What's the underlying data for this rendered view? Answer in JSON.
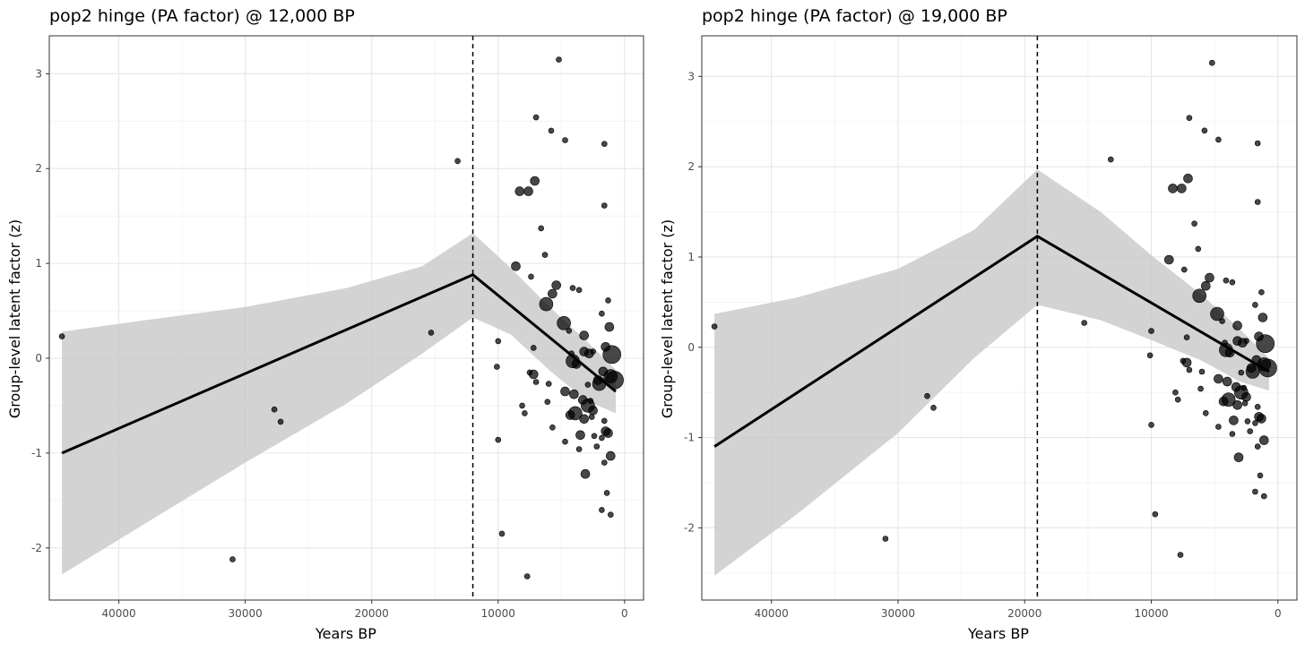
{
  "chart_data": [
    {
      "type": "scatter",
      "title": "pop2 hinge (PA factor) @ 12,000 BP",
      "xlabel": "Years BP",
      "ylabel": "Group-level latent factor (z)",
      "xlim": [
        45500,
        -1500
      ],
      "ylim": [
        -2.55,
        3.4
      ],
      "x_reversed": true,
      "x_ticks": [
        40000,
        30000,
        20000,
        10000,
        0
      ],
      "y_ticks": [
        -2,
        -1,
        0,
        1,
        2,
        3
      ],
      "grid": true,
      "hinge_x": 12000,
      "fit_line": [
        {
          "x": 44500,
          "y": -1.0
        },
        {
          "x": 12000,
          "y": 0.88
        },
        {
          "x": 700,
          "y": -0.35
        }
      ],
      "ribbon": {
        "x": [
          44500,
          38000,
          30000,
          22000,
          16000,
          12000,
          9000,
          6000,
          3000,
          700
        ],
        "upper": [
          0.28,
          0.4,
          0.54,
          0.74,
          0.97,
          1.32,
          0.95,
          0.55,
          0.18,
          -0.12
        ],
        "lower": [
          -2.28,
          -1.75,
          -1.1,
          -0.48,
          0.05,
          0.43,
          0.25,
          -0.12,
          -0.45,
          -0.58
        ]
      },
      "points": [
        {
          "x": 44500,
          "y": 0.23,
          "s": 1
        },
        {
          "x": 31000,
          "y": -2.12,
          "s": 1
        },
        {
          "x": 27700,
          "y": -0.54,
          "s": 1
        },
        {
          "x": 27200,
          "y": -0.67,
          "s": 1
        },
        {
          "x": 15300,
          "y": 0.27,
          "s": 1
        },
        {
          "x": 13200,
          "y": 2.08,
          "s": 1
        },
        {
          "x": 10000,
          "y": 0.18,
          "s": 1
        },
        {
          "x": 10100,
          "y": -0.09,
          "s": 1
        },
        {
          "x": 10000,
          "y": -0.86,
          "s": 1
        },
        {
          "x": 9700,
          "y": -1.85,
          "s": 1
        },
        {
          "x": 8300,
          "y": 1.76,
          "s": 2
        },
        {
          "x": 7600,
          "y": 1.76,
          "s": 2
        },
        {
          "x": 7100,
          "y": 1.87,
          "s": 2
        },
        {
          "x": 7000,
          "y": 2.54,
          "s": 1
        },
        {
          "x": 7700,
          "y": -2.3,
          "s": 1
        },
        {
          "x": 5800,
          "y": 2.4,
          "s": 1
        },
        {
          "x": 5200,
          "y": 3.15,
          "s": 1
        },
        {
          "x": 4700,
          "y": 2.3,
          "s": 1
        },
        {
          "x": 1600,
          "y": 2.26,
          "s": 1
        },
        {
          "x": 1600,
          "y": 1.61,
          "s": 1
        },
        {
          "x": 6600,
          "y": 1.37,
          "s": 1
        },
        {
          "x": 6300,
          "y": 1.09,
          "s": 1
        },
        {
          "x": 8600,
          "y": 0.97,
          "s": 2
        },
        {
          "x": 7400,
          "y": 0.86,
          "s": 1
        },
        {
          "x": 5400,
          "y": 0.77,
          "s": 2
        },
        {
          "x": 5700,
          "y": 0.68,
          "s": 2
        },
        {
          "x": 6200,
          "y": 0.57,
          "s": 3
        },
        {
          "x": 4100,
          "y": 0.74,
          "s": 1
        },
        {
          "x": 3600,
          "y": 0.72,
          "s": 1
        },
        {
          "x": 1300,
          "y": 0.61,
          "s": 1
        },
        {
          "x": 1800,
          "y": 0.47,
          "s": 1
        },
        {
          "x": 4800,
          "y": 0.37,
          "s": 3
        },
        {
          "x": 4400,
          "y": 0.29,
          "s": 1
        },
        {
          "x": 3200,
          "y": 0.24,
          "s": 2
        },
        {
          "x": 1200,
          "y": 0.33,
          "s": 2
        },
        {
          "x": 7200,
          "y": 0.11,
          "s": 1
        },
        {
          "x": 4200,
          "y": 0.05,
          "s": 1
        },
        {
          "x": 3800,
          "y": -0.06,
          "s": 2
        },
        {
          "x": 3200,
          "y": 0.07,
          "s": 2
        },
        {
          "x": 2800,
          "y": 0.05,
          "s": 2
        },
        {
          "x": 2500,
          "y": 0.07,
          "s": 1
        },
        {
          "x": 1500,
          "y": 0.12,
          "s": 2
        },
        {
          "x": 1000,
          "y": 0.04,
          "s": 4
        },
        {
          "x": 4100,
          "y": -0.03,
          "s": 3
        },
        {
          "x": 7500,
          "y": -0.15,
          "s": 1
        },
        {
          "x": 7200,
          "y": -0.17,
          "s": 2
        },
        {
          "x": 7000,
          "y": -0.25,
          "s": 1
        },
        {
          "x": 6000,
          "y": -0.27,
          "s": 1
        },
        {
          "x": 2100,
          "y": -0.23,
          "s": 2
        },
        {
          "x": 1700,
          "y": -0.14,
          "s": 2
        },
        {
          "x": 1100,
          "y": -0.19,
          "s": 3
        },
        {
          "x": 800,
          "y": -0.23,
          "s": 4
        },
        {
          "x": 2000,
          "y": -0.27,
          "s": 3
        },
        {
          "x": 2900,
          "y": -0.28,
          "s": 1
        },
        {
          "x": 4700,
          "y": -0.35,
          "s": 2
        },
        {
          "x": 4000,
          "y": -0.38,
          "s": 2
        },
        {
          "x": 3300,
          "y": -0.44,
          "s": 2
        },
        {
          "x": 2700,
          "y": -0.45,
          "s": 1
        },
        {
          "x": 8100,
          "y": -0.5,
          "s": 1
        },
        {
          "x": 6100,
          "y": -0.46,
          "s": 1
        },
        {
          "x": 2900,
          "y": -0.5,
          "s": 3
        },
        {
          "x": 2500,
          "y": -0.55,
          "s": 2
        },
        {
          "x": 3900,
          "y": -0.58,
          "s": 3
        },
        {
          "x": 4300,
          "y": -0.6,
          "s": 2
        },
        {
          "x": 3200,
          "y": -0.64,
          "s": 2
        },
        {
          "x": 2600,
          "y": -0.62,
          "s": 1
        },
        {
          "x": 7900,
          "y": -0.58,
          "s": 1
        },
        {
          "x": 1600,
          "y": -0.66,
          "s": 1
        },
        {
          "x": 5700,
          "y": -0.73,
          "s": 1
        },
        {
          "x": 1500,
          "y": -0.77,
          "s": 2
        },
        {
          "x": 1300,
          "y": -0.79,
          "s": 2
        },
        {
          "x": 3500,
          "y": -0.81,
          "s": 2
        },
        {
          "x": 2400,
          "y": -0.82,
          "s": 1
        },
        {
          "x": 1800,
          "y": -0.84,
          "s": 1
        },
        {
          "x": 4700,
          "y": -0.88,
          "s": 1
        },
        {
          "x": 2200,
          "y": -0.93,
          "s": 1
        },
        {
          "x": 3600,
          "y": -0.96,
          "s": 1
        },
        {
          "x": 1100,
          "y": -1.03,
          "s": 2
        },
        {
          "x": 1600,
          "y": -1.1,
          "s": 1
        },
        {
          "x": 3100,
          "y": -1.22,
          "s": 2
        },
        {
          "x": 1400,
          "y": -1.42,
          "s": 1
        },
        {
          "x": 1800,
          "y": -1.6,
          "s": 1
        },
        {
          "x": 1100,
          "y": -1.65,
          "s": 1
        }
      ]
    },
    {
      "type": "scatter",
      "title": "pop2 hinge (PA factor) @ 19,000 BP",
      "xlabel": "Years BP",
      "ylabel": "Group-level latent factor (z)",
      "xlim": [
        45500,
        -1500
      ],
      "ylim": [
        -2.8,
        3.45
      ],
      "x_reversed": true,
      "x_ticks": [
        40000,
        30000,
        20000,
        10000,
        0
      ],
      "y_ticks": [
        -2,
        -1,
        0,
        1,
        2,
        3
      ],
      "grid": true,
      "hinge_x": 19000,
      "fit_line": [
        {
          "x": 44500,
          "y": -1.1
        },
        {
          "x": 19000,
          "y": 1.23
        },
        {
          "x": 700,
          "y": -0.27
        }
      ],
      "ribbon": {
        "x": [
          44500,
          38000,
          30000,
          24000,
          19000,
          14000,
          10000,
          6000,
          3000,
          700
        ],
        "upper": [
          0.37,
          0.55,
          0.87,
          1.3,
          1.97,
          1.5,
          1.02,
          0.58,
          0.2,
          -0.12
        ],
        "lower": [
          -2.53,
          -1.85,
          -0.95,
          -0.12,
          0.47,
          0.3,
          0.08,
          -0.15,
          -0.38,
          -0.48
        ]
      },
      "points": [
        {
          "x": 44500,
          "y": 0.23,
          "s": 1
        },
        {
          "x": 31000,
          "y": -2.12,
          "s": 1
        },
        {
          "x": 27700,
          "y": -0.54,
          "s": 1
        },
        {
          "x": 27200,
          "y": -0.67,
          "s": 1
        },
        {
          "x": 15300,
          "y": 0.27,
          "s": 1
        },
        {
          "x": 13200,
          "y": 2.08,
          "s": 1
        },
        {
          "x": 10000,
          "y": 0.18,
          "s": 1
        },
        {
          "x": 10100,
          "y": -0.09,
          "s": 1
        },
        {
          "x": 10000,
          "y": -0.86,
          "s": 1
        },
        {
          "x": 9700,
          "y": -1.85,
          "s": 1
        },
        {
          "x": 8300,
          "y": 1.76,
          "s": 2
        },
        {
          "x": 7600,
          "y": 1.76,
          "s": 2
        },
        {
          "x": 7100,
          "y": 1.87,
          "s": 2
        },
        {
          "x": 7000,
          "y": 2.54,
          "s": 1
        },
        {
          "x": 7700,
          "y": -2.3,
          "s": 1
        },
        {
          "x": 5800,
          "y": 2.4,
          "s": 1
        },
        {
          "x": 5200,
          "y": 3.15,
          "s": 1
        },
        {
          "x": 4700,
          "y": 2.3,
          "s": 1
        },
        {
          "x": 1600,
          "y": 2.26,
          "s": 1
        },
        {
          "x": 1600,
          "y": 1.61,
          "s": 1
        },
        {
          "x": 6600,
          "y": 1.37,
          "s": 1
        },
        {
          "x": 6300,
          "y": 1.09,
          "s": 1
        },
        {
          "x": 8600,
          "y": 0.97,
          "s": 2
        },
        {
          "x": 7400,
          "y": 0.86,
          "s": 1
        },
        {
          "x": 5400,
          "y": 0.77,
          "s": 2
        },
        {
          "x": 5700,
          "y": 0.68,
          "s": 2
        },
        {
          "x": 6200,
          "y": 0.57,
          "s": 3
        },
        {
          "x": 4100,
          "y": 0.74,
          "s": 1
        },
        {
          "x": 3600,
          "y": 0.72,
          "s": 1
        },
        {
          "x": 1300,
          "y": 0.61,
          "s": 1
        },
        {
          "x": 1800,
          "y": 0.47,
          "s": 1
        },
        {
          "x": 4800,
          "y": 0.37,
          "s": 3
        },
        {
          "x": 4400,
          "y": 0.29,
          "s": 1
        },
        {
          "x": 3200,
          "y": 0.24,
          "s": 2
        },
        {
          "x": 1200,
          "y": 0.33,
          "s": 2
        },
        {
          "x": 7200,
          "y": 0.11,
          "s": 1
        },
        {
          "x": 4200,
          "y": 0.05,
          "s": 1
        },
        {
          "x": 3800,
          "y": -0.06,
          "s": 2
        },
        {
          "x": 3200,
          "y": 0.07,
          "s": 2
        },
        {
          "x": 2800,
          "y": 0.05,
          "s": 2
        },
        {
          "x": 2500,
          "y": 0.07,
          "s": 1
        },
        {
          "x": 1500,
          "y": 0.12,
          "s": 2
        },
        {
          "x": 1000,
          "y": 0.04,
          "s": 4
        },
        {
          "x": 4100,
          "y": -0.03,
          "s": 3
        },
        {
          "x": 7500,
          "y": -0.15,
          "s": 1
        },
        {
          "x": 7200,
          "y": -0.17,
          "s": 2
        },
        {
          "x": 7000,
          "y": -0.25,
          "s": 1
        },
        {
          "x": 6000,
          "y": -0.27,
          "s": 1
        },
        {
          "x": 2100,
          "y": -0.23,
          "s": 2
        },
        {
          "x": 1700,
          "y": -0.14,
          "s": 2
        },
        {
          "x": 1100,
          "y": -0.19,
          "s": 3
        },
        {
          "x": 800,
          "y": -0.23,
          "s": 4
        },
        {
          "x": 2000,
          "y": -0.27,
          "s": 3
        },
        {
          "x": 2900,
          "y": -0.28,
          "s": 1
        },
        {
          "x": 4700,
          "y": -0.35,
          "s": 2
        },
        {
          "x": 4000,
          "y": -0.38,
          "s": 2
        },
        {
          "x": 3300,
          "y": -0.44,
          "s": 2
        },
        {
          "x": 2700,
          "y": -0.45,
          "s": 1
        },
        {
          "x": 8100,
          "y": -0.5,
          "s": 1
        },
        {
          "x": 6100,
          "y": -0.46,
          "s": 1
        },
        {
          "x": 2900,
          "y": -0.5,
          "s": 3
        },
        {
          "x": 2500,
          "y": -0.55,
          "s": 2
        },
        {
          "x": 3900,
          "y": -0.58,
          "s": 3
        },
        {
          "x": 4300,
          "y": -0.6,
          "s": 2
        },
        {
          "x": 3200,
          "y": -0.64,
          "s": 2
        },
        {
          "x": 2600,
          "y": -0.62,
          "s": 1
        },
        {
          "x": 7900,
          "y": -0.58,
          "s": 1
        },
        {
          "x": 1600,
          "y": -0.66,
          "s": 1
        },
        {
          "x": 5700,
          "y": -0.73,
          "s": 1
        },
        {
          "x": 1500,
          "y": -0.77,
          "s": 2
        },
        {
          "x": 1300,
          "y": -0.79,
          "s": 2
        },
        {
          "x": 3500,
          "y": -0.81,
          "s": 2
        },
        {
          "x": 2400,
          "y": -0.82,
          "s": 1
        },
        {
          "x": 1800,
          "y": -0.84,
          "s": 1
        },
        {
          "x": 4700,
          "y": -0.88,
          "s": 1
        },
        {
          "x": 2200,
          "y": -0.93,
          "s": 1
        },
        {
          "x": 3600,
          "y": -0.96,
          "s": 1
        },
        {
          "x": 1100,
          "y": -1.03,
          "s": 2
        },
        {
          "x": 1600,
          "y": -1.1,
          "s": 1
        },
        {
          "x": 3100,
          "y": -1.22,
          "s": 2
        },
        {
          "x": 1400,
          "y": -1.42,
          "s": 1
        },
        {
          "x": 1800,
          "y": -1.6,
          "s": 1
        },
        {
          "x": 1100,
          "y": -1.65,
          "s": 1
        }
      ]
    }
  ]
}
